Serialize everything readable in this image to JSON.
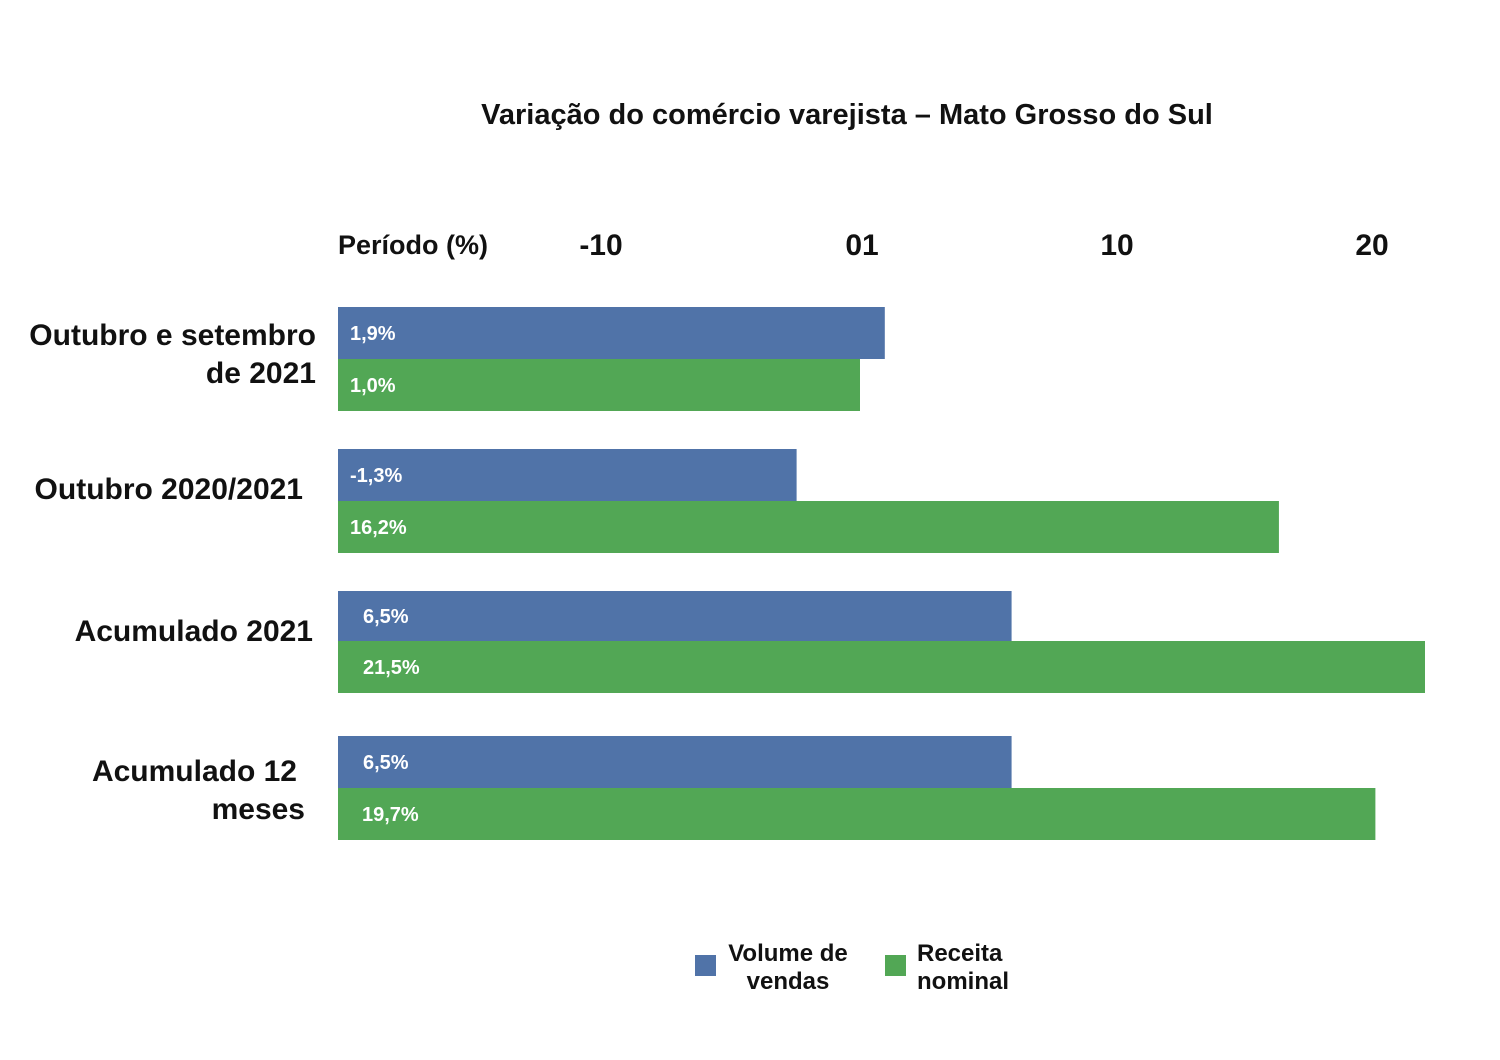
{
  "chart_data": {
    "type": "bar",
    "orientation": "horizontal",
    "title": "Variação do comércio varejista – Mato Grosso do Sul",
    "ylabel": "Período (%)",
    "xlabel": "",
    "x_ticks": [
      "-10",
      "01",
      "10",
      "20"
    ],
    "categories": [
      [
        "Outubro e setembro",
        "de 2021"
      ],
      [
        "Outubro 2020/2021"
      ],
      [
        "Acumulado 2021"
      ],
      [
        "Acumulado 12",
        "meses"
      ]
    ],
    "series": [
      {
        "name": "Volume de vendas",
        "legend_lines": [
          "Volume de",
          "vendas"
        ],
        "color": "#5073a8",
        "values": [
          1.9,
          -1.3,
          6.5,
          6.5
        ],
        "labels": [
          "1,9%",
          "-1,3%",
          "6,5%",
          "6,5%"
        ]
      },
      {
        "name": "Receita nominal",
        "legend_lines": [
          "Receita",
          "nominal"
        ],
        "color": "#52a755",
        "values": [
          1.0,
          16.2,
          21.5,
          19.7
        ],
        "labels": [
          "1,0%",
          "16,2%",
          "21,5%",
          "19,7%"
        ]
      }
    ],
    "grid": false,
    "legend_position": "bottom"
  }
}
